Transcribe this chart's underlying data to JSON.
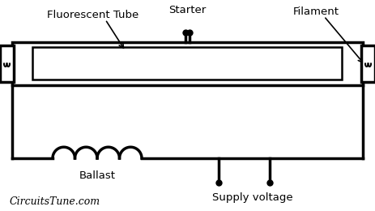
{
  "bg_color": "#ffffff",
  "line_color": "#000000",
  "labels": {
    "fluorescent_tube": "Fluorescent Tube",
    "starter": "Starter",
    "filament": "Filament",
    "ballast": "Ballast",
    "supply_voltage": "Supply voltage",
    "brand": "CircuitsTune.com"
  },
  "fig_width": 4.63,
  "fig_height": 2.6,
  "dpi": 100
}
